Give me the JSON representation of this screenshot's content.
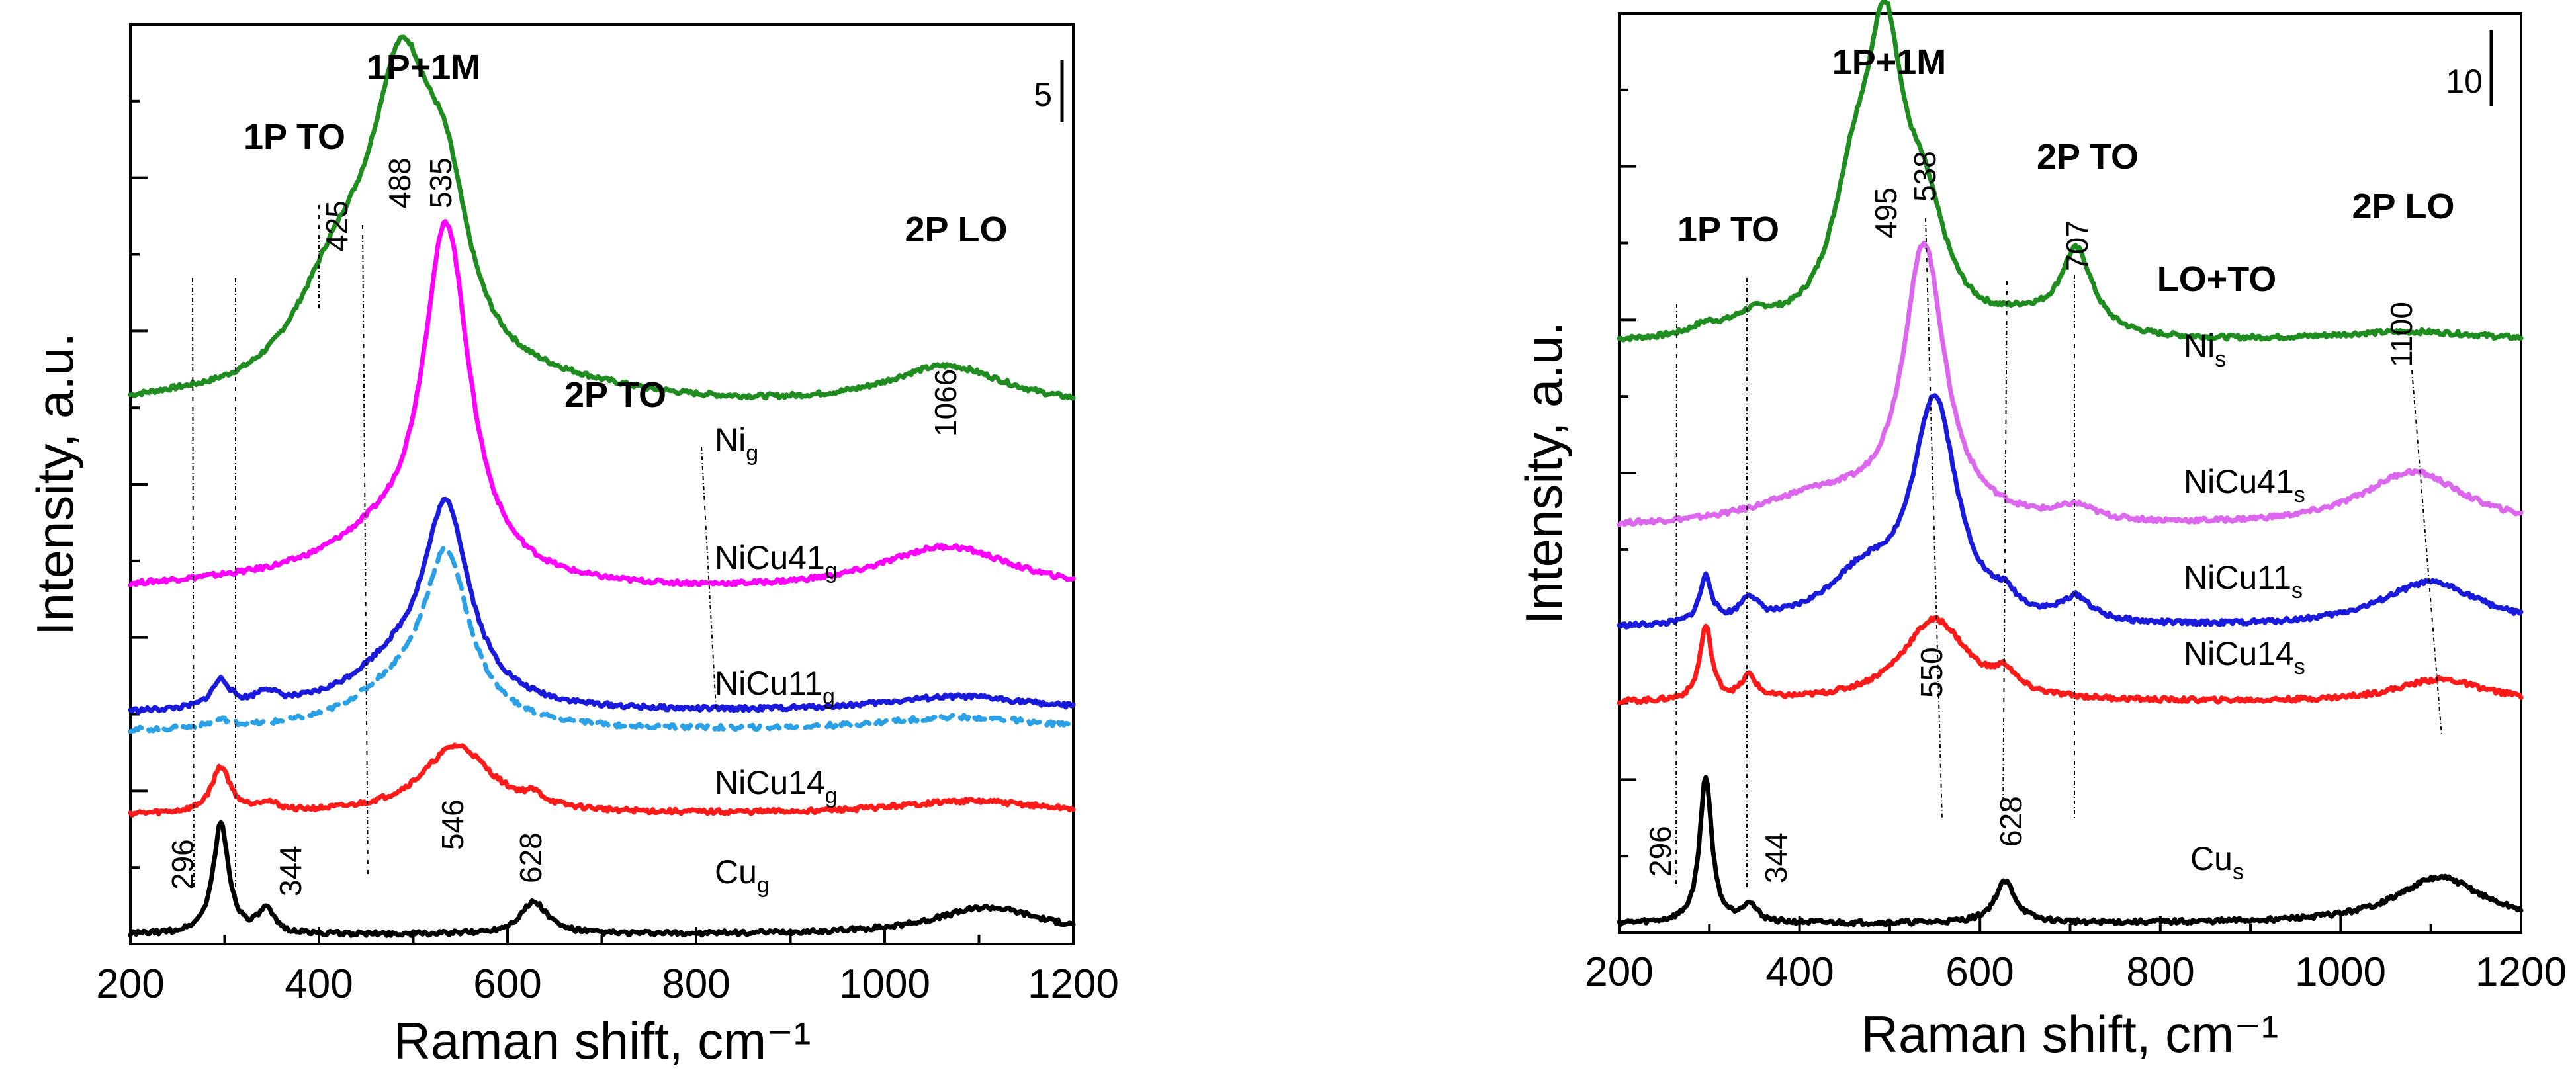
{
  "chart_data": [
    {
      "type": "line",
      "panel": "left",
      "xlabel": "Raman shift, cm⁻¹",
      "ylabel": "Intensity, a.u.",
      "xlim": [
        200,
        1200
      ],
      "xticks": [
        200,
        400,
        600,
        800,
        1000,
        1200
      ],
      "ylim": [
        0,
        100
      ],
      "scale_bar": "5",
      "band_labels": [
        "1P+1M",
        "1P TO",
        "2P TO",
        "2P LO"
      ],
      "peak_labels": [
        "425",
        "488",
        "535",
        "1066",
        "296",
        "344",
        "546",
        "628"
      ],
      "series": [
        {
          "name": "Ni",
          "sub": "g",
          "color": "#1e8c1e",
          "dashed": false,
          "offset": 58,
          "peaks": [
            [
              240,
              0.4,
              60
            ],
            [
              400,
              3,
              50
            ],
            [
              425,
              8,
              50
            ],
            [
              488,
              32,
              42
            ],
            [
              535,
              14,
              30
            ],
            [
              650,
              1.5,
              120
            ],
            [
              1066,
              4.5,
              80
            ]
          ]
        },
        {
          "name": "NiCu41",
          "sub": "g",
          "color": "#ff00ff",
          "dashed": false,
          "offset": 38,
          "peaks": [
            [
              300,
              0.8,
              150
            ],
            [
              460,
              4,
              80
            ],
            [
              535,
              38,
              30
            ],
            [
              1066,
              5,
              90
            ]
          ]
        },
        {
          "name": "NiCu11",
          "sub": "g",
          "color": "#1a1adc",
          "dashed": false,
          "offset": 25,
          "peaks": [
            [
              296,
              3,
              12
            ],
            [
              344,
              1.5,
              14
            ],
            [
              480,
              4,
              60
            ],
            [
              535,
              21,
              30
            ],
            [
              1080,
              1.8,
              110
            ]
          ]
        },
        {
          "name": "",
          "sub": "",
          "color": "#2aa0e6",
          "dashed": true,
          "offset": 23,
          "peaks": [
            [
              296,
              0.8,
              14
            ],
            [
              480,
              3.5,
              60
            ],
            [
              535,
              18,
              30
            ],
            [
              1080,
              1.6,
              110
            ]
          ]
        },
        {
          "name": "NiCu14",
          "sub": "g",
          "color": "#ff1a1a",
          "dashed": false,
          "offset": 14,
          "peaks": [
            [
              296,
              5,
              12
            ],
            [
              344,
              1,
              14
            ],
            [
              546,
              7.5,
              45
            ],
            [
              628,
              1,
              12
            ],
            [
              1090,
              1.5,
              100
            ]
          ]
        },
        {
          "name": "Cu",
          "sub": "g",
          "color": "#000000",
          "dashed": false,
          "offset": 1,
          "peaks": [
            [
              296,
              12,
              10
            ],
            [
              344,
              2.5,
              10
            ],
            [
              628,
              3.5,
              18
            ],
            [
              1110,
              3,
              70
            ]
          ]
        }
      ]
    },
    {
      "type": "line",
      "panel": "right",
      "xlabel": "Raman shift, cm⁻¹",
      "ylabel": "Intensity, a.u.",
      "xlim": [
        200,
        1200
      ],
      "xticks": [
        200,
        400,
        600,
        800,
        1000,
        1200
      ],
      "ylim": [
        0,
        100
      ],
      "scale_bar": "10",
      "band_labels": [
        "1P+1M",
        "2P TO",
        "1P TO",
        "LO+TO",
        "2P LO"
      ],
      "peak_labels": [
        "495",
        "538",
        "707",
        "1100",
        "550",
        "296",
        "344",
        "628"
      ],
      "series": [
        {
          "name": "Ni",
          "sub": "s",
          "color": "#1e8c1e",
          "dashed": false,
          "offset": 64,
          "peaks": [
            [
              296,
              1,
              20
            ],
            [
              350,
              2,
              30
            ],
            [
              460,
              13,
              30
            ],
            [
              495,
              28,
              25
            ],
            [
              538,
              11,
              30
            ],
            [
              707,
              9,
              22
            ],
            [
              650,
              1.5,
              40
            ],
            [
              1080,
              1.2,
              120
            ]
          ]
        },
        {
          "name": "NiCu41",
          "sub": "s",
          "color": "#dd66ee",
          "dashed": false,
          "offset": 44,
          "peaks": [
            [
              420,
              3,
              80
            ],
            [
              538,
              30,
              28
            ],
            [
              707,
              1.5,
              25
            ],
            [
              1080,
              6,
              70
            ]
          ]
        },
        {
          "name": "NiCu11",
          "sub": "s",
          "color": "#1a1adc",
          "dashed": false,
          "offset": 33,
          "peaks": [
            [
              296,
              5,
              8
            ],
            [
              344,
              2.5,
              12
            ],
            [
              470,
              5,
              50
            ],
            [
              550,
              24,
              30
            ],
            [
              628,
              1.5,
              14
            ],
            [
              707,
              2.5,
              20
            ],
            [
              1100,
              5,
              70
            ]
          ]
        },
        {
          "name": "NiCu14",
          "sub": "s",
          "color": "#ff1a1a",
          "dashed": false,
          "offset": 25,
          "peaks": [
            [
              296,
              8,
              8
            ],
            [
              344,
              2.5,
              10
            ],
            [
              550,
              9,
              45
            ],
            [
              628,
              2,
              14
            ],
            [
              1110,
              2.5,
              60
            ]
          ]
        },
        {
          "name": "Cu",
          "sub": "s",
          "color": "#000000",
          "dashed": false,
          "offset": 1,
          "peaks": [
            [
              296,
              16,
              8
            ],
            [
              344,
              2,
              10
            ],
            [
              628,
              4.5,
              14
            ],
            [
              1110,
              5,
              60
            ]
          ]
        }
      ]
    }
  ]
}
